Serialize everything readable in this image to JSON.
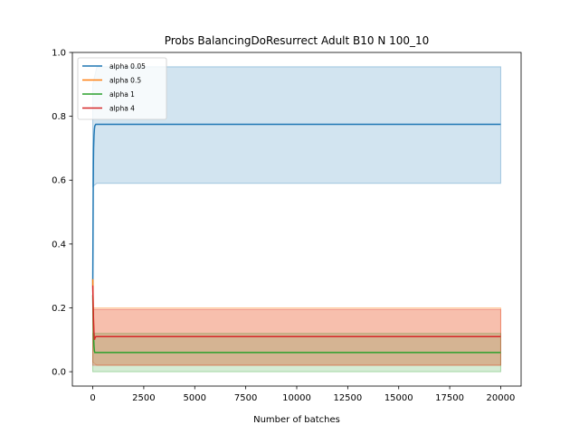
{
  "chart_data": {
    "type": "line",
    "title": "Probs BalancingDoResurrect Adult B10 N 100_10",
    "xlabel": "Number of batches",
    "ylabel": "",
    "xlim": [
      -1000,
      21000
    ],
    "ylim": [
      -0.045,
      1.0
    ],
    "xticks": [
      0,
      2500,
      5000,
      7500,
      10000,
      12500,
      15000,
      17500,
      20000
    ],
    "yticks": [
      0.0,
      0.2,
      0.4,
      0.6,
      0.8,
      1.0
    ],
    "xtick_labels": [
      "0",
      "2500",
      "5000",
      "7500",
      "10000",
      "12500",
      "15000",
      "17500",
      "20000"
    ],
    "ytick_labels": [
      "0.0",
      "0.2",
      "0.4",
      "0.6",
      "0.8",
      "1.0"
    ],
    "grid": false,
    "legend_position": "top-left",
    "series": [
      {
        "name": "alpha 0.05",
        "color": "#1f77b4",
        "x": [
          0,
          10,
          20,
          30,
          40,
          60,
          80,
          100,
          150,
          200,
          20000
        ],
        "y": [
          0.27,
          0.4,
          0.55,
          0.65,
          0.7,
          0.74,
          0.76,
          0.77,
          0.775,
          0.775,
          0.775
        ],
        "band": {
          "x": [
            0,
            200,
            20000
          ],
          "lower": [
            0.58,
            0.59,
            0.59
          ],
          "upper": [
            0.9,
            0.955,
            0.955
          ]
        }
      },
      {
        "name": "alpha 0.5",
        "color": "#ff7f0e",
        "x": [
          0,
          20,
          40,
          60,
          80,
          100,
          150,
          200,
          20000
        ],
        "y": [
          0.29,
          0.2,
          0.15,
          0.11,
          0.1,
          0.105,
          0.11,
          0.11,
          0.11
        ],
        "band": {
          "x": [
            0,
            200,
            20000
          ],
          "lower": [
            0.03,
            0.02,
            0.02
          ],
          "upper": [
            0.2,
            0.2,
            0.2
          ]
        }
      },
      {
        "name": "alpha 1",
        "color": "#2ca02c",
        "x": [
          0,
          20,
          40,
          60,
          80,
          100,
          150,
          200,
          20000
        ],
        "y": [
          0.24,
          0.16,
          0.11,
          0.08,
          0.065,
          0.06,
          0.06,
          0.06,
          0.06
        ],
        "band": {
          "x": [
            0,
            200,
            20000
          ],
          "lower": [
            0.0,
            0.0,
            0.0
          ],
          "upper": [
            0.12,
            0.12,
            0.12
          ]
        }
      },
      {
        "name": "alpha 4",
        "color": "#d62728",
        "x": [
          0,
          20,
          40,
          60,
          80,
          100,
          150,
          200,
          20000
        ],
        "y": [
          0.27,
          0.2,
          0.15,
          0.12,
          0.1,
          0.105,
          0.11,
          0.11,
          0.11
        ],
        "band": {
          "x": [
            0,
            200,
            20000
          ],
          "lower": [
            0.02,
            0.02,
            0.02
          ],
          "upper": [
            0.195,
            0.195,
            0.195
          ]
        }
      }
    ]
  }
}
